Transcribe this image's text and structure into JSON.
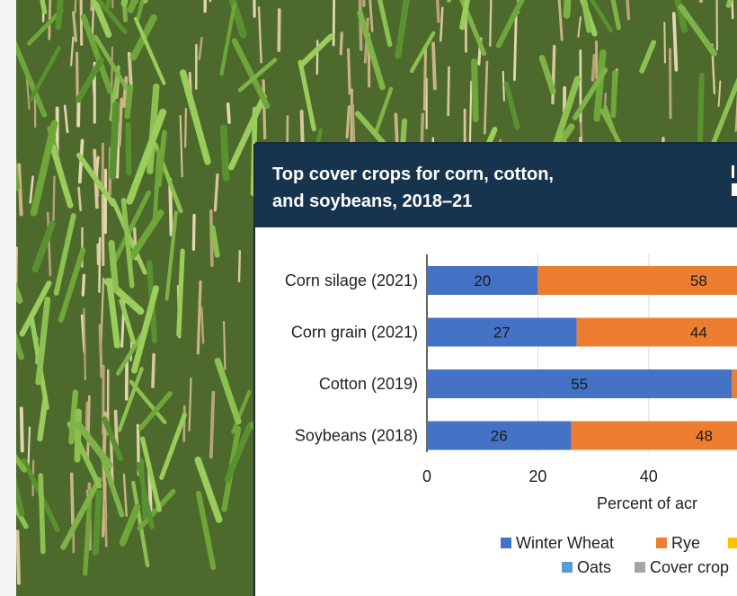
{
  "chart_data": {
    "type": "bar",
    "orientation": "horizontal",
    "stacked": true,
    "title": "Top cover crops for corn, cotton, and soybeans, 2018–21",
    "title_lines": [
      "Top cover crops for corn, cotton,",
      "and soybeans, 2018–21"
    ],
    "categories": [
      "Corn silage (2021)",
      "Corn grain (2021)",
      "Cotton (2019)",
      "Soybeans (2018)"
    ],
    "series": [
      {
        "name": "Winter Wheat",
        "color": "#4472c4",
        "values": [
          20,
          27,
          55,
          26
        ],
        "labels": [
          "20",
          "27",
          "55",
          "26"
        ]
      },
      {
        "name": "Rye",
        "color": "#ed7d31",
        "values": [
          58,
          44,
          null,
          48
        ],
        "labels": [
          "58",
          "44",
          "",
          "48"
        ]
      }
    ],
    "xlim": [
      0,
      100
    ],
    "x_ticks": [
      "0",
      "20",
      "40"
    ],
    "xlabel": "Percent of acr",
    "grid": true,
    "legend_placement": "bottom",
    "legend": [
      {
        "name": "Winter Wheat",
        "color": "#4472c4"
      },
      {
        "name": "Rye",
        "color": "#ed7d31"
      },
      {
        "name": "",
        "color": "#ffc000"
      },
      {
        "name": "Oats",
        "color": "#5b9bd5"
      },
      {
        "name": "Cover crop",
        "color": "#a5a5a5"
      }
    ]
  }
}
